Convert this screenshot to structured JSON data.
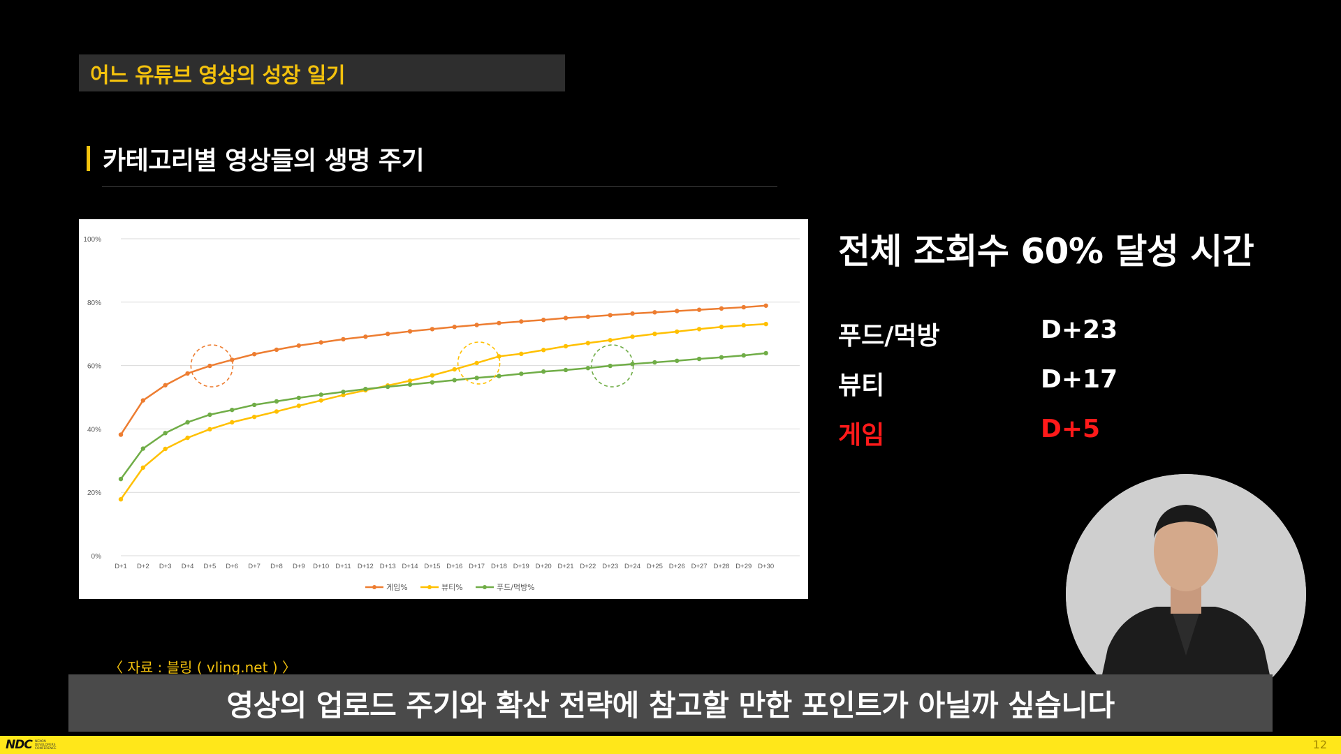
{
  "slide": {
    "section_title": "어느 유튜브 영상의 성장 일기",
    "subtitle": "카테고리별 영상들의 생명 주기",
    "source": "〈 자료 : 블링 ( vling.net ) 〉",
    "caption": "영상의 업로드 주기와 확산 전략에 참고할 만한 포인트가 아닐까 싶습니다",
    "page_number": "12",
    "logo_text": "NDC",
    "logo_subtext": "NEXON DEVELOPERS CONFERENCE"
  },
  "side_panel": {
    "heading": "전체 조회수 60% 달성 시간",
    "rows": [
      {
        "label": "푸드/먹방",
        "value": "D+23",
        "color": "#ffffff"
      },
      {
        "label": "뷰티",
        "value": "D+17",
        "color": "#ffffff"
      },
      {
        "label": "게임",
        "value": "D+5",
        "color": "#ff1a1a"
      }
    ]
  },
  "chart_data": {
    "type": "line",
    "title": "",
    "xlabel": "",
    "ylabel": "",
    "x": [
      "D+1",
      "D+2",
      "D+3",
      "D+4",
      "D+5",
      "D+6",
      "D+7",
      "D+8",
      "D+9",
      "D+10",
      "D+11",
      "D+12",
      "D+13",
      "D+14",
      "D+15",
      "D+16",
      "D+17",
      "D+18",
      "D+19",
      "D+20",
      "D+21",
      "D+22",
      "D+23",
      "D+24",
      "D+25",
      "D+26",
      "D+27",
      "D+28",
      "D+29",
      "D+30"
    ],
    "ylim": [
      0,
      100
    ],
    "yticks": [
      0,
      20,
      40,
      60,
      80,
      100
    ],
    "ytick_labels": [
      "0%",
      "20%",
      "40%",
      "60%",
      "80%",
      "100%"
    ],
    "grid": true,
    "legend": "bottom",
    "series": [
      {
        "name": "게임%",
        "color": "#ed7d31",
        "values": [
          38.2,
          49,
          53.8,
          57.5,
          59.9,
          61.8,
          63.6,
          65,
          66.3,
          67.3,
          68.3,
          69.1,
          70,
          70.8,
          71.5,
          72.2,
          72.8,
          73.4,
          73.9,
          74.4,
          75,
          75.4,
          75.9,
          76.4,
          76.8,
          77.2,
          77.6,
          78,
          78.4,
          78.9
        ]
      },
      {
        "name": "뷰티%",
        "color": "#ffc000",
        "values": [
          17.8,
          27.8,
          33.7,
          37.2,
          39.9,
          42.1,
          43.8,
          45.5,
          47.3,
          49,
          50.7,
          52.2,
          53.7,
          55.2,
          56.9,
          58.8,
          60.8,
          62.9,
          63.7,
          64.9,
          66.1,
          67.1,
          68,
          69.1,
          70,
          70.7,
          71.5,
          72.2,
          72.7,
          73.1
        ]
      },
      {
        "name": "푸드/먹방%",
        "color": "#70ad47",
        "values": [
          24.2,
          33.8,
          38.7,
          42.1,
          44.5,
          46,
          47.6,
          48.7,
          49.8,
          50.8,
          51.7,
          52.6,
          53.3,
          54,
          54.7,
          55.4,
          56.1,
          56.7,
          57.4,
          58.1,
          58.6,
          59.2,
          59.9,
          60.5,
          61,
          61.5,
          62.1,
          62.6,
          63.2,
          63.9
        ]
      }
    ],
    "highlights": [
      {
        "series": "게임%",
        "x": "D+5",
        "color": "#ed7d31"
      },
      {
        "series": "뷰티%",
        "x": "D+17",
        "color": "#ffc000"
      },
      {
        "series": "푸드/먹방%",
        "x": "D+23",
        "color": "#70ad47"
      }
    ]
  }
}
